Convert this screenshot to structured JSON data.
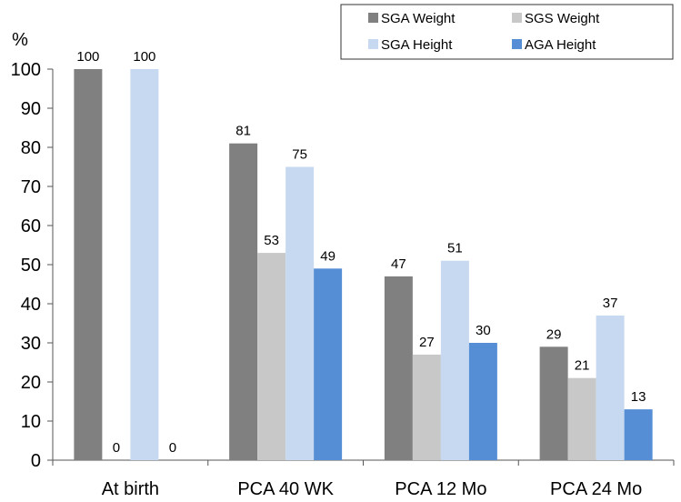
{
  "chart_data": {
    "type": "bar",
    "title": "",
    "xlabel": "",
    "ylabel": "%",
    "ylim": [
      0,
      100
    ],
    "yticks": [
      0,
      10,
      20,
      30,
      40,
      50,
      60,
      70,
      80,
      90,
      100
    ],
    "categories": [
      "At birth",
      "PCA 40 WK",
      "PCA 12 Mo",
      "PCA 24 Mo"
    ],
    "series": [
      {
        "name": "SGA Weight",
        "color": "#808080",
        "values": [
          100,
          81,
          47,
          29
        ]
      },
      {
        "name": "SGS Weight",
        "color": "#c8c8c8",
        "values": [
          0,
          53,
          27,
          21
        ]
      },
      {
        "name": "SGA Height",
        "color": "#c6d9f1",
        "values": [
          100,
          75,
          51,
          37
        ]
      },
      {
        "name": "AGA Height",
        "color": "#558ed5",
        "values": [
          0,
          49,
          30,
          13
        ]
      }
    ],
    "legend_position": "top-right",
    "grid": false
  }
}
